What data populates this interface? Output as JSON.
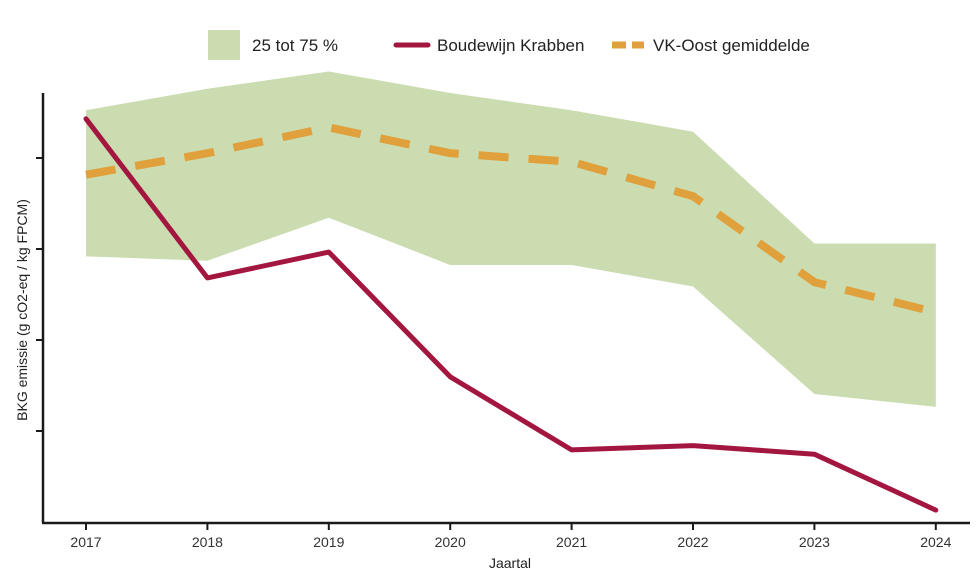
{
  "chart_data": {
    "type": "line",
    "x": [
      "2017",
      "2018",
      "2019",
      "2020",
      "2021",
      "2022",
      "2023",
      "2024"
    ],
    "xlabel": "Jaartal",
    "ylabel": "BKG emissie (g cO2-eq / kg FPCM)",
    "y_tick_labels_shown": false,
    "ylim": [
      0,
      1
    ],
    "band": {
      "name": "25 tot 75 %",
      "lower": [
        0.62,
        0.61,
        0.71,
        0.6,
        0.6,
        0.55,
        0.3,
        0.27
      ],
      "upper": [
        0.96,
        1.01,
        1.05,
        1.0,
        0.96,
        0.91,
        0.65,
        0.65
      ]
    },
    "series": [
      {
        "name": "Boudewijn Krabben",
        "style": "solid",
        "values": [
          0.94,
          0.57,
          0.63,
          0.34,
          0.17,
          0.18,
          0.16,
          0.03
        ]
      },
      {
        "name": "VK-Oost gemiddelde",
        "style": "dashed",
        "values": [
          0.81,
          0.86,
          0.92,
          0.86,
          0.84,
          0.76,
          0.56,
          0.49
        ]
      }
    ],
    "legend": {
      "placement": "top"
    },
    "colors": {
      "band": "#cbdcb0",
      "krabben": "#a3163f",
      "gemiddelde": "#e0a03c",
      "axis": "#1a1a1a"
    }
  }
}
